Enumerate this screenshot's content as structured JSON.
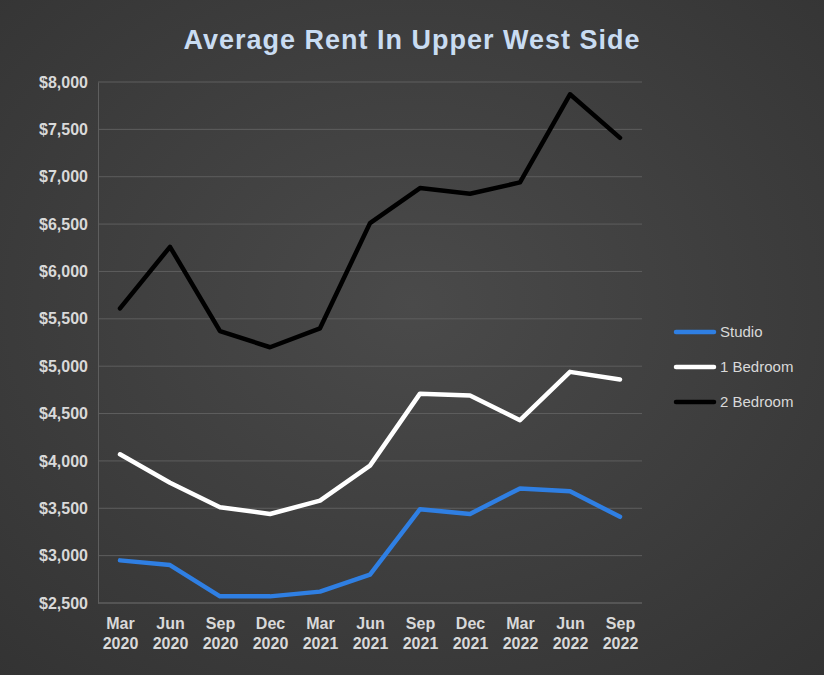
{
  "chart_data": {
    "type": "line",
    "title": "Average Rent In Upper West Side",
    "categories": [
      "Mar 2020",
      "Jun 2020",
      "Sep 2020",
      "Dec 2020",
      "Mar 2021",
      "Jun 2021",
      "Sep 2021",
      "Dec 2021",
      "Mar 2022",
      "Jun 2022",
      "Sep 2022"
    ],
    "series": [
      {
        "name": "Studio",
        "color": "#2f7fe3",
        "values": [
          2950,
          2900,
          2570,
          2570,
          2620,
          2800,
          3490,
          3440,
          3710,
          3680,
          3410
        ]
      },
      {
        "name": "1 Bedroom",
        "color": "#ffffff",
        "values": [
          4070,
          3770,
          3510,
          3440,
          3580,
          3950,
          4710,
          4690,
          4430,
          4940,
          4860
        ]
      },
      {
        "name": "2 Bedroom",
        "color": "#000000",
        "values": [
          5610,
          6260,
          5370,
          5200,
          5400,
          6510,
          6880,
          6820,
          6940,
          7870,
          7410
        ]
      }
    ],
    "ylim": [
      2500,
      8000
    ],
    "yticks": [
      {
        "value": 2500,
        "label": "$2,500"
      },
      {
        "value": 3000,
        "label": "$3,000"
      },
      {
        "value": 3500,
        "label": "$3,500"
      },
      {
        "value": 4000,
        "label": "$4,000"
      },
      {
        "value": 4500,
        "label": "$4,500"
      },
      {
        "value": 5000,
        "label": "$5,000"
      },
      {
        "value": 5500,
        "label": "$5,500"
      },
      {
        "value": 6000,
        "label": "$6,000"
      },
      {
        "value": 6500,
        "label": "$6,500"
      },
      {
        "value": 7000,
        "label": "$7,000"
      },
      {
        "value": 7500,
        "label": "$7,500"
      },
      {
        "value": 8000,
        "label": "$8,000"
      }
    ],
    "grid": true,
    "legend": "right"
  }
}
